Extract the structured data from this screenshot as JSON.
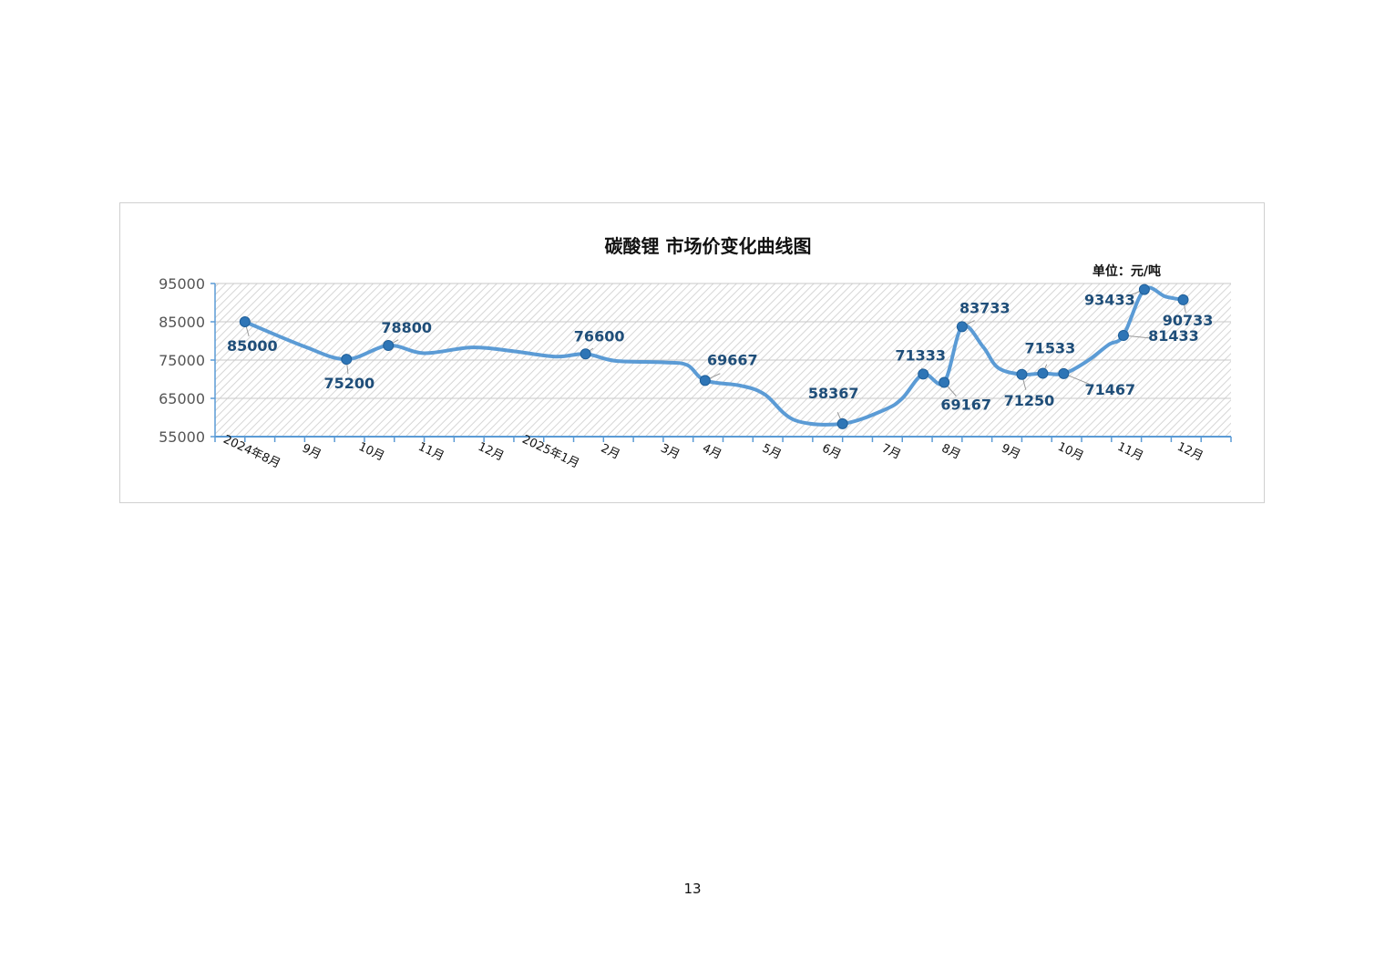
{
  "page": {
    "number": "13"
  },
  "chart_data": {
    "type": "line",
    "title": "碳酸锂 市场价变化曲线图",
    "unit_label": "单位：元/吨",
    "ylim": [
      55000,
      95000
    ],
    "yticks": [
      "55000",
      "65000",
      "75000",
      "85000",
      "95000"
    ],
    "xlabels": [
      {
        "text": "2024年8月",
        "pos": 0.5
      },
      {
        "text": "9月",
        "pos": 1.5
      },
      {
        "text": "10月",
        "pos": 2.5
      },
      {
        "text": "11月",
        "pos": 3.5
      },
      {
        "text": "12月",
        "pos": 4.5
      },
      {
        "text": "2025年1月",
        "pos": 5.5
      },
      {
        "text": "2月",
        "pos": 6.5
      },
      {
        "text": "3月",
        "pos": 7.5
      },
      {
        "text": "4月",
        "pos": 8.2
      },
      {
        "text": "5月",
        "pos": 9.2
      },
      {
        "text": "6月",
        "pos": 10.2
      },
      {
        "text": "7月",
        "pos": 11.2
      },
      {
        "text": "8月",
        "pos": 12.2
      },
      {
        "text": "9月",
        "pos": 13.2
      },
      {
        "text": "10月",
        "pos": 14.2
      },
      {
        "text": "11月",
        "pos": 15.2
      },
      {
        "text": "12月",
        "pos": 16.2
      }
    ],
    "grid": true,
    "line_color": "#5b9bd5",
    "marker_color": "#2e75b6",
    "label_color": "#1f4e79",
    "series": [
      {
        "points": [
          {
            "x": 0.5,
            "y": 85000,
            "label": "85000"
          },
          {
            "x": 1.5,
            "y": 78500
          },
          {
            "x": 2.2,
            "y": 75200,
            "label": "75200"
          },
          {
            "x": 2.9,
            "y": 78800,
            "label": "78800"
          },
          {
            "x": 3.5,
            "y": 76800
          },
          {
            "x": 4.3,
            "y": 78300
          },
          {
            "x": 5.0,
            "y": 77300
          },
          {
            "x": 5.7,
            "y": 75900
          },
          {
            "x": 6.2,
            "y": 76600,
            "label": "76600"
          },
          {
            "x": 6.7,
            "y": 74800
          },
          {
            "x": 7.5,
            "y": 74400
          },
          {
            "x": 7.9,
            "y": 73700
          },
          {
            "x": 8.2,
            "y": 69667,
            "label": "69667"
          },
          {
            "x": 8.8,
            "y": 68300
          },
          {
            "x": 9.2,
            "y": 66000
          },
          {
            "x": 9.7,
            "y": 59300
          },
          {
            "x": 10.5,
            "y": 58367,
            "label": "58367"
          },
          {
            "x": 11.2,
            "y": 62000
          },
          {
            "x": 11.5,
            "y": 65000
          },
          {
            "x": 11.85,
            "y": 71333,
            "label": "71333"
          },
          {
            "x": 12.2,
            "y": 69167,
            "label": "69167"
          },
          {
            "x": 12.5,
            "y": 83733,
            "label": "83733"
          },
          {
            "x": 12.85,
            "y": 78500
          },
          {
            "x": 13.1,
            "y": 73000
          },
          {
            "x": 13.5,
            "y": 71250,
            "label": "71250"
          },
          {
            "x": 13.85,
            "y": 71533,
            "label": "71533"
          },
          {
            "x": 14.2,
            "y": 71467,
            "label": "71467"
          },
          {
            "x": 14.6,
            "y": 74800
          },
          {
            "x": 14.95,
            "y": 79000
          },
          {
            "x": 15.2,
            "y": 81433,
            "label": "81433"
          },
          {
            "x": 15.55,
            "y": 93433,
            "label": "93433"
          },
          {
            "x": 15.9,
            "y": 91600
          },
          {
            "x": 16.2,
            "y": 90733,
            "label": "90733"
          }
        ]
      }
    ]
  }
}
